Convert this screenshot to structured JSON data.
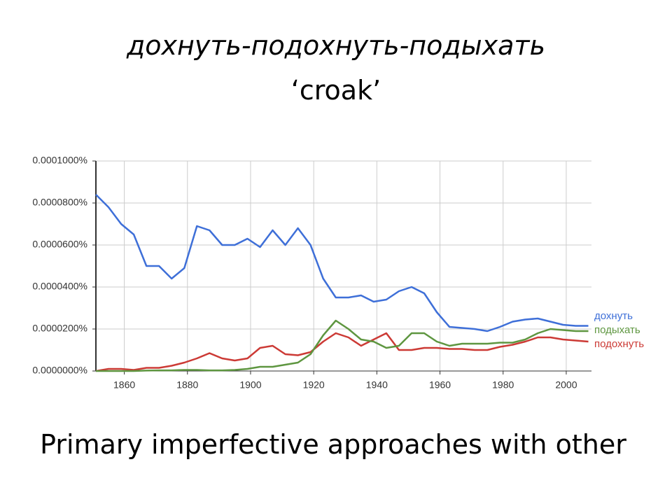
{
  "chart_data": {
    "type": "line",
    "title": "дохнуть-подохнуть-подыхать",
    "subtitle": "‘croak’",
    "caption": "Primary imperfective approaches with other",
    "x": [
      1851,
      1855,
      1859,
      1863,
      1867,
      1871,
      1875,
      1879,
      1883,
      1887,
      1891,
      1895,
      1899,
      1903,
      1907,
      1911,
      1915,
      1919,
      1923,
      1927,
      1931,
      1935,
      1939,
      1943,
      1947,
      1951,
      1955,
      1959,
      1963,
      1967,
      1971,
      1975,
      1979,
      1983,
      1987,
      1991,
      1995,
      1999,
      2003,
      2007
    ],
    "series": [
      {
        "name": "дохнуть",
        "color": "#3e6fd8",
        "values": [
          8.4e-05,
          7.8e-05,
          7e-05,
          6.5e-05,
          5e-05,
          5e-05,
          4.4e-05,
          4.9e-05,
          6.9e-05,
          6.7e-05,
          6e-05,
          6e-05,
          6.3e-05,
          5.9e-05,
          6.7e-05,
          6e-05,
          6.8e-05,
          6e-05,
          4.4e-05,
          3.5e-05,
          3.5e-05,
          3.6e-05,
          3.3e-05,
          3.4e-05,
          3.8e-05,
          4e-05,
          3.7e-05,
          2.8e-05,
          2.1e-05,
          2.05e-05,
          2e-05,
          1.9e-05,
          2.1e-05,
          2.35e-05,
          2.45e-05,
          2.5e-05,
          2.35e-05,
          2.2e-05,
          2.15e-05,
          2.15e-05
        ]
      },
      {
        "name": "подыхать",
        "color": "#5e9640",
        "values": [
          0,
          0,
          0,
          0,
          2e-07,
          3e-07,
          3e-07,
          5e-07,
          5e-07,
          3e-07,
          3e-07,
          5e-07,
          1e-06,
          2e-06,
          2e-06,
          3e-06,
          4e-06,
          8e-06,
          1.7e-05,
          2.4e-05,
          2e-05,
          1.5e-05,
          1.4e-05,
          1.1e-05,
          1.2e-05,
          1.8e-05,
          1.8e-05,
          1.4e-05,
          1.2e-05,
          1.3e-05,
          1.3e-05,
          1.3e-05,
          1.35e-05,
          1.35e-05,
          1.5e-05,
          1.8e-05,
          2e-05,
          1.95e-05,
          1.9e-05,
          1.9e-05
        ]
      },
      {
        "name": "подохнуть",
        "color": "#cc3a35",
        "values": [
          0,
          1e-06,
          1e-06,
          5e-07,
          1.5e-06,
          1.5e-06,
          2.5e-06,
          4e-06,
          6e-06,
          8.5e-06,
          6e-06,
          5e-06,
          6e-06,
          1.1e-05,
          1.2e-05,
          8e-06,
          7.5e-06,
          9e-06,
          1.4e-05,
          1.8e-05,
          1.6e-05,
          1.2e-05,
          1.5e-05,
          1.8e-05,
          1e-05,
          1e-05,
          1.1e-05,
          1.1e-05,
          1.05e-05,
          1.05e-05,
          1e-05,
          1e-05,
          1.15e-05,
          1.25e-05,
          1.4e-05,
          1.6e-05,
          1.6e-05,
          1.5e-05,
          1.45e-05,
          1.4e-05
        ]
      }
    ],
    "xlim": [
      1851,
      2008
    ],
    "xticks": [
      1860,
      1880,
      1900,
      1920,
      1940,
      1960,
      1980,
      2000
    ],
    "ylim": [
      0,
      0.0001
    ],
    "yticks": [
      {
        "value": 0,
        "label": "0.0000000%"
      },
      {
        "value": 2e-05,
        "label": "0.0000200%"
      },
      {
        "value": 4e-05,
        "label": "0.0000400%"
      },
      {
        "value": 6e-05,
        "label": "0.0000600%"
      },
      {
        "value": 8e-05,
        "label": "0.0000800%"
      },
      {
        "value": 0.0001,
        "label": "0.0001000%"
      }
    ],
    "grid": true,
    "legend": "right"
  }
}
